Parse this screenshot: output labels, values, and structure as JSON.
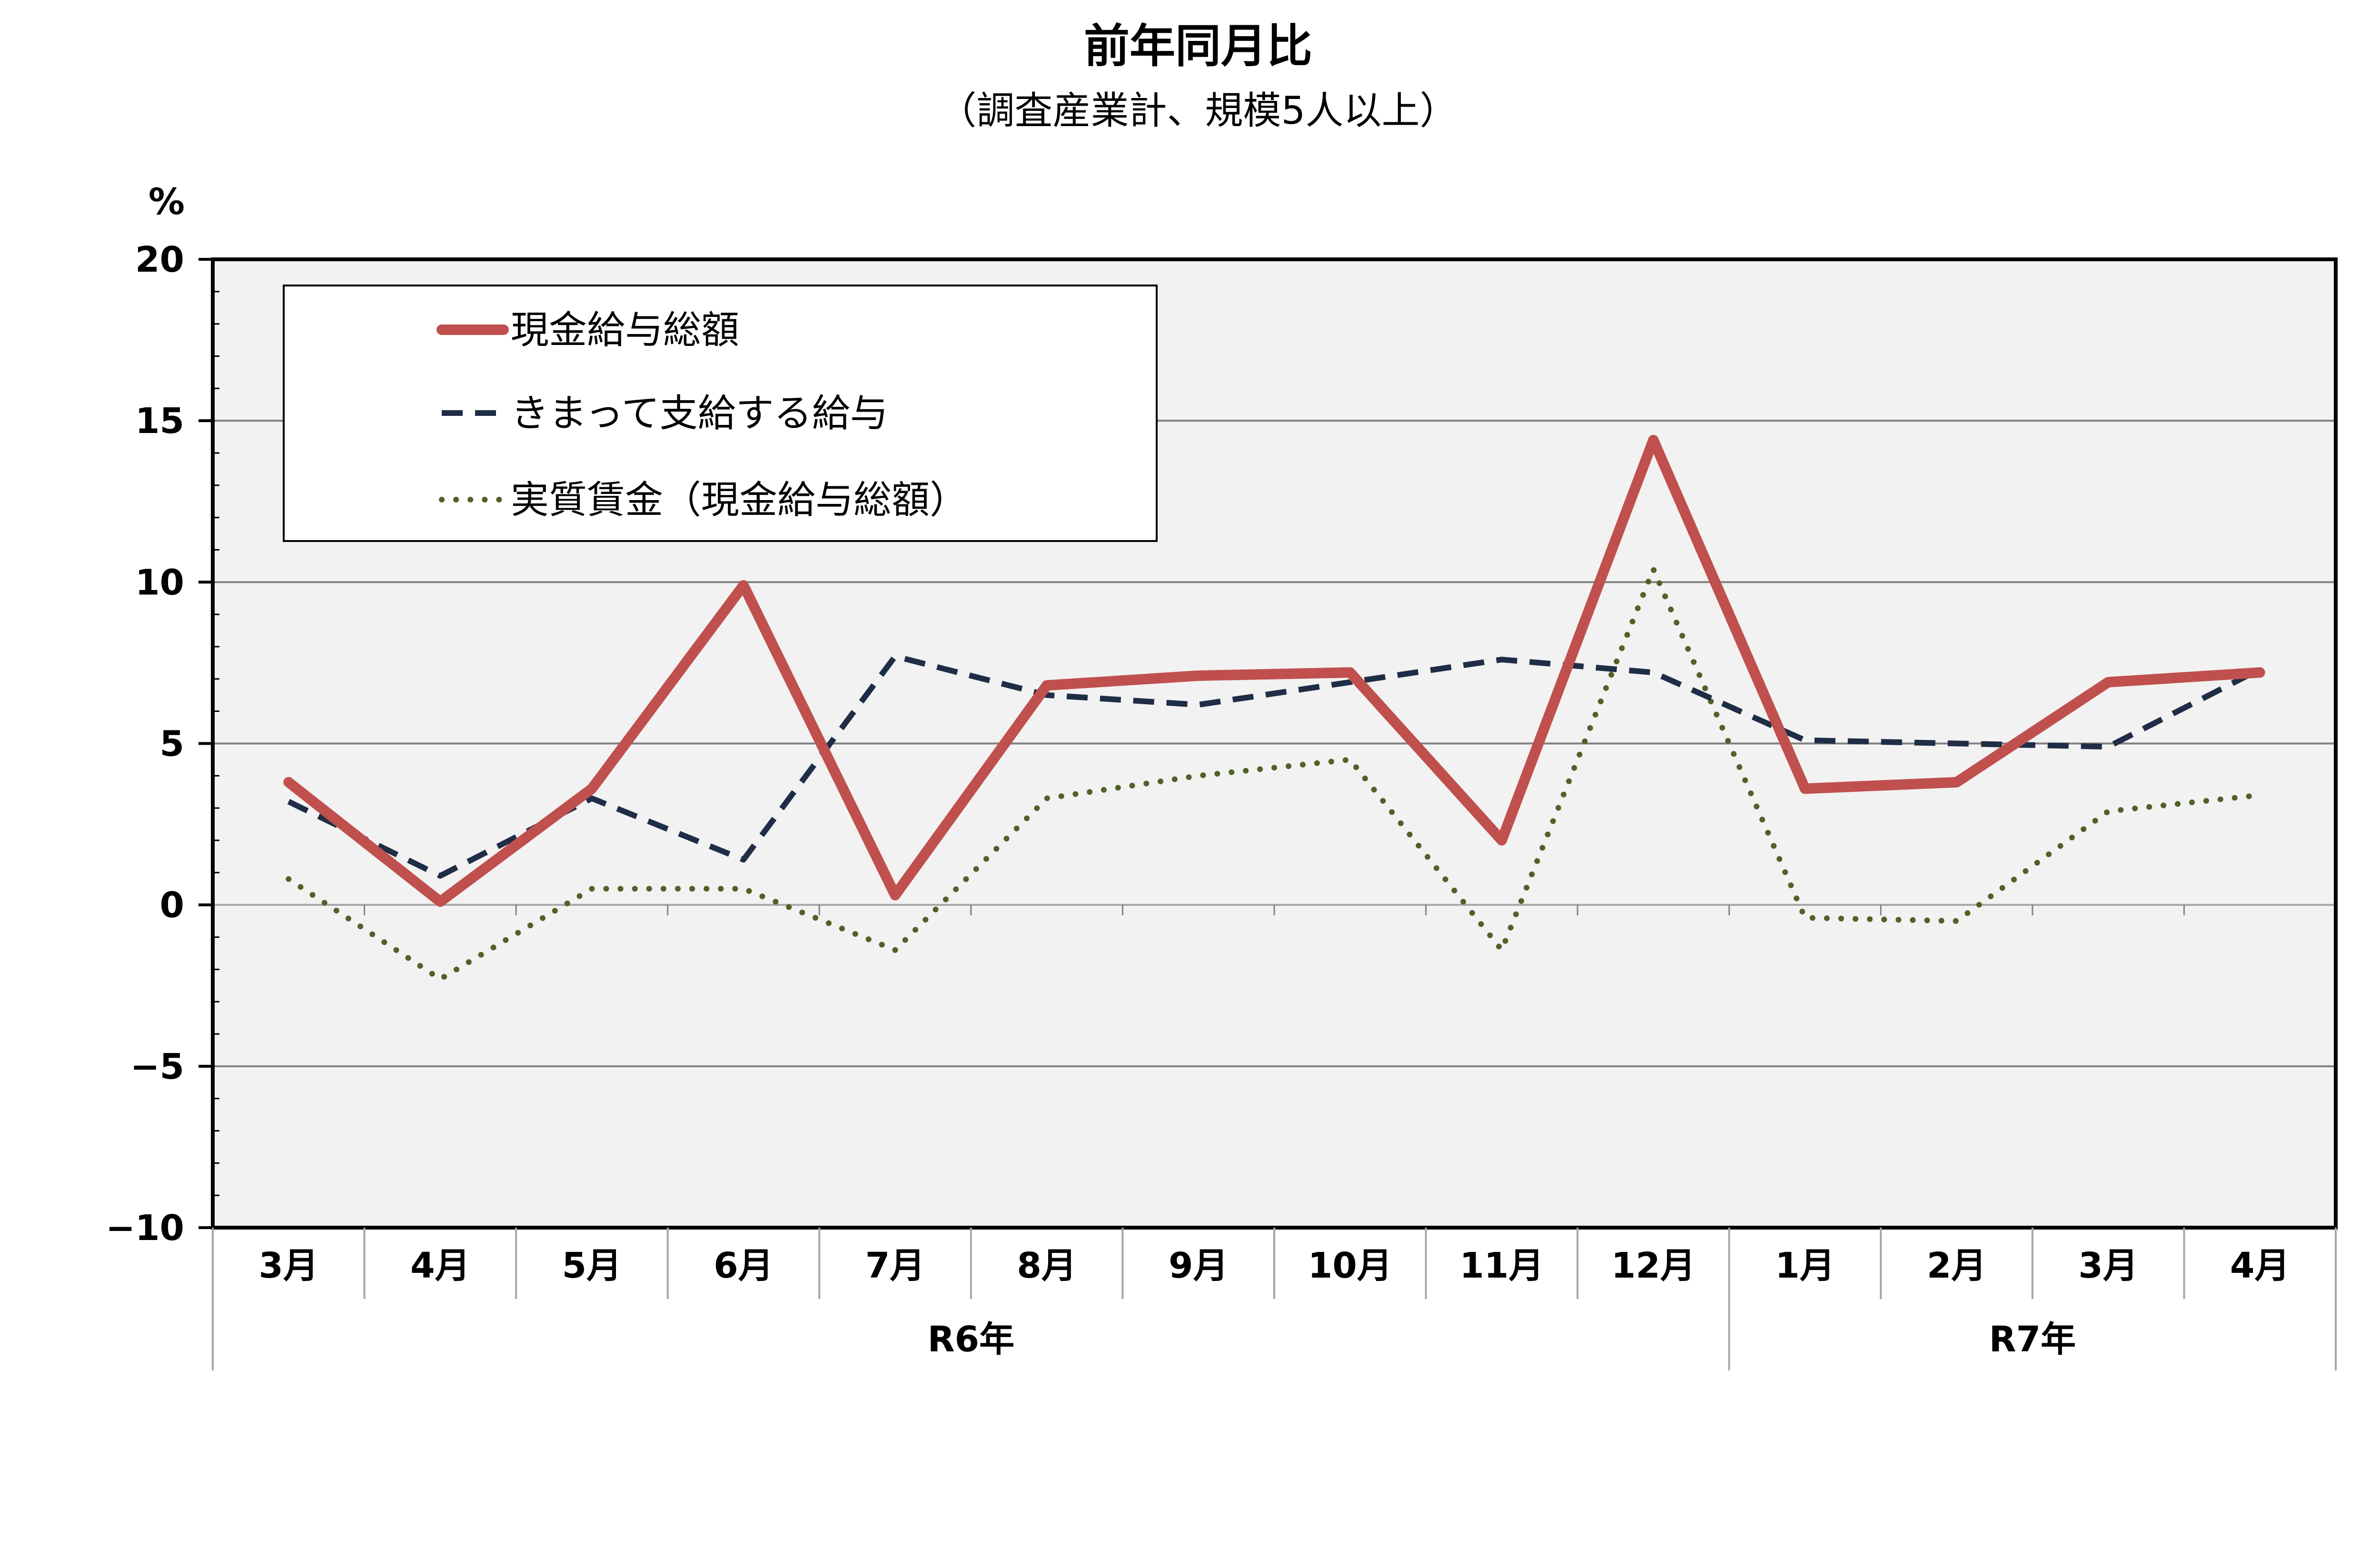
{
  "chart_data": {
    "type": "line",
    "title": "前年同月比",
    "subtitle": "（調査産業計、規模5人以上）",
    "ylabel": "%",
    "ylim": [
      -10,
      20
    ],
    "yticks": [
      20,
      15,
      10,
      5,
      0,
      -5,
      -10
    ],
    "ytick_labels": [
      "20",
      "15",
      "10",
      "5",
      "0",
      "−5",
      "−10"
    ],
    "categories": [
      "3月",
      "4月",
      "5月",
      "6月",
      "7月",
      "8月",
      "9月",
      "10月",
      "11月",
      "12月",
      "1月",
      "2月",
      "3月",
      "4月"
    ],
    "year_groups": [
      {
        "label": "R6年",
        "count": 10
      },
      {
        "label": "R7年",
        "count": 4
      }
    ],
    "grid": true,
    "legend_position": "top-left",
    "series": [
      {
        "name": "現金給与総額",
        "style": "solid",
        "color": "#c0504d",
        "values": [
          3.8,
          0.1,
          3.6,
          9.9,
          0.3,
          6.8,
          7.1,
          7.2,
          2.0,
          14.4,
          3.6,
          3.8,
          6.9,
          7.2
        ]
      },
      {
        "name": "きまって支給する給与",
        "style": "dashed",
        "color": "#1f2d46",
        "values": [
          3.2,
          0.9,
          3.3,
          1.4,
          7.7,
          6.5,
          6.2,
          6.9,
          7.6,
          7.2,
          5.1,
          5.0,
          4.9,
          7.3
        ]
      },
      {
        "name": "実質賃金（現金給与総額）",
        "style": "dotted",
        "color": "#4f6228",
        "values": [
          0.8,
          -2.3,
          0.5,
          0.5,
          -1.4,
          3.3,
          4.0,
          4.5,
          -1.4,
          10.4,
          -0.4,
          -0.5,
          2.9,
          3.4
        ]
      }
    ]
  }
}
